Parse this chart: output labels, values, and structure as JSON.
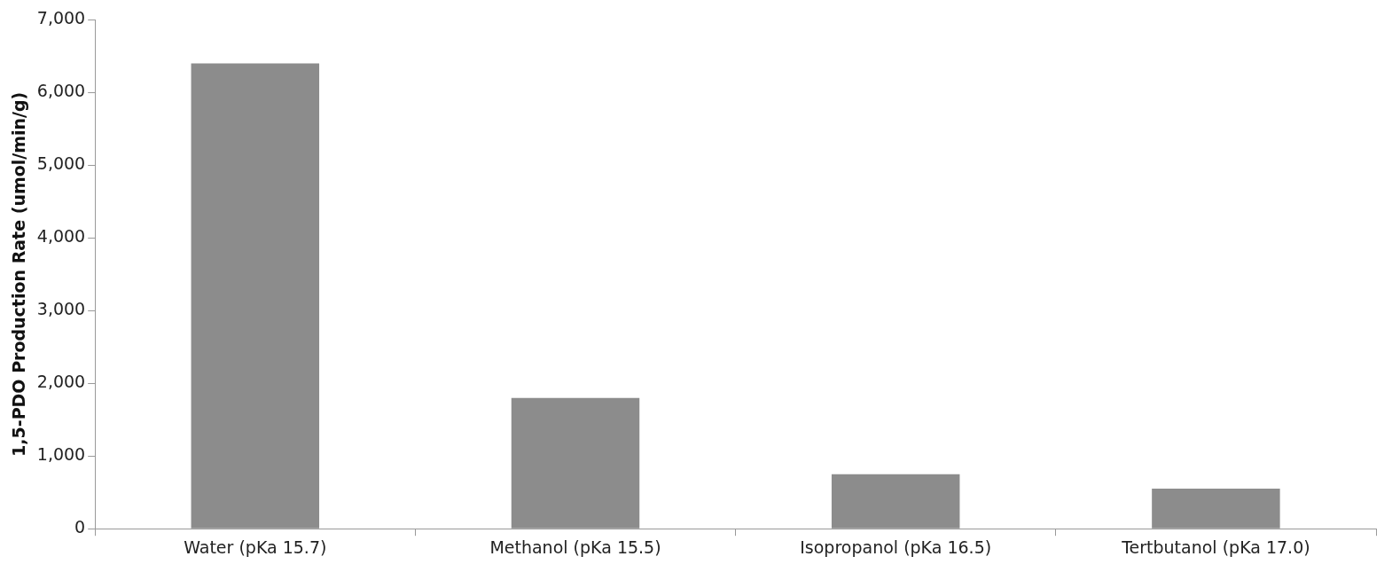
{
  "chart_data": {
    "type": "bar",
    "ylabel": "1,5-PDO Production Rate (umol/min/g)",
    "categories": [
      "Water (pKa 15.7)",
      "Methanol (pKa 15.5)",
      "Isopropanol (pKa 16.5)",
      "Tertbutanol (pKa 17.0)"
    ],
    "values": [
      6400,
      1800,
      750,
      550
    ],
    "color": "#8c8c8c",
    "ylim": [
      0,
      7000
    ],
    "yticks": [
      {
        "value": 0,
        "label": "0"
      },
      {
        "value": 1000,
        "label": "1,000"
      },
      {
        "value": 2000,
        "label": "2,000"
      },
      {
        "value": 3000,
        "label": "3,000"
      },
      {
        "value": 4000,
        "label": "4,000"
      },
      {
        "value": 5000,
        "label": "5,000"
      },
      {
        "value": 6000,
        "label": "6,000"
      },
      {
        "value": 7000,
        "label": "7,000"
      }
    ]
  }
}
